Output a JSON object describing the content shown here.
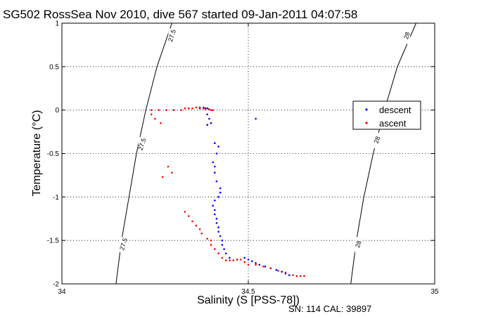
{
  "chart_data": {
    "type": "scatter",
    "title": "SG502 RossSea Nov 2010, dive 567 started 09-Jan-2011 04:07:58",
    "xlabel": "Salinity (S [PSS-78])",
    "ylabel": "Temperature (°C)",
    "xlim": [
      34,
      35
    ],
    "ylim": [
      -2,
      1
    ],
    "xticks": [
      34,
      34.5,
      35
    ],
    "xtick_labels": [
      "34",
      "34.5",
      "35"
    ],
    "yticks": [
      -2,
      -1.5,
      -1,
      -0.5,
      0,
      0.5,
      1
    ],
    "ytick_labels": [
      "-2",
      "-1.5",
      "-1",
      "-0.5",
      "0",
      "0.5",
      "1"
    ],
    "grid": true,
    "legend_position": "right",
    "footer": "SN: 114  CAL: 39897",
    "series": [
      {
        "name": "descent",
        "color": "#0000ff",
        "marker": "dot",
        "points": [
          [
            34.37,
            0.03
          ],
          [
            34.38,
            0.03
          ],
          [
            34.385,
            0.02
          ],
          [
            34.39,
            0.02
          ],
          [
            34.395,
            0.01
          ],
          [
            34.39,
            -0.05
          ],
          [
            34.395,
            -0.1
          ],
          [
            34.4,
            -0.15
          ],
          [
            34.39,
            -0.17
          ],
          [
            34.41,
            -0.38
          ],
          [
            34.42,
            -0.42
          ],
          [
            34.415,
            -0.5
          ],
          [
            34.405,
            -0.6
          ],
          [
            34.41,
            -0.65
          ],
          [
            34.41,
            -0.72
          ],
          [
            34.415,
            -0.82
          ],
          [
            34.425,
            -0.9
          ],
          [
            34.425,
            -0.95
          ],
          [
            34.42,
            -1.0
          ],
          [
            34.41,
            -1.04
          ],
          [
            34.405,
            -1.1
          ],
          [
            34.41,
            -1.15
          ],
          [
            34.41,
            -1.2
          ],
          [
            34.415,
            -1.25
          ],
          [
            34.415,
            -1.3
          ],
          [
            34.42,
            -1.35
          ],
          [
            34.42,
            -1.4
          ],
          [
            34.425,
            -1.45
          ],
          [
            34.43,
            -1.5
          ],
          [
            34.43,
            -1.55
          ],
          [
            34.435,
            -1.6
          ],
          [
            34.44,
            -1.65
          ],
          [
            34.45,
            -1.7
          ],
          [
            34.47,
            -1.72
          ],
          [
            34.49,
            -1.7
          ],
          [
            34.5,
            -1.72
          ],
          [
            34.51,
            -1.74
          ],
          [
            34.52,
            -1.76
          ],
          [
            34.53,
            -1.78
          ],
          [
            34.545,
            -1.8
          ],
          [
            34.56,
            -1.82
          ],
          [
            34.575,
            -1.84
          ],
          [
            34.59,
            -1.86
          ],
          [
            34.6,
            -1.88
          ],
          [
            34.61,
            -1.9
          ],
          [
            34.52,
            -0.1
          ]
        ]
      },
      {
        "name": "ascent",
        "color": "#ff0000",
        "marker": "dot",
        "points": [
          [
            34.24,
            0.0
          ],
          [
            34.26,
            0.0
          ],
          [
            34.28,
            0.0
          ],
          [
            34.3,
            0.0
          ],
          [
            34.32,
            0.0
          ],
          [
            34.33,
            0.02
          ],
          [
            34.34,
            0.02
          ],
          [
            34.35,
            0.02
          ],
          [
            34.36,
            0.03
          ],
          [
            34.37,
            0.02
          ],
          [
            34.38,
            0.02
          ],
          [
            34.385,
            0.01
          ],
          [
            34.395,
            0.01
          ],
          [
            34.4,
            0.0
          ],
          [
            34.405,
            0.0
          ],
          [
            34.24,
            -0.05
          ],
          [
            34.25,
            -0.1
          ],
          [
            34.265,
            -0.15
          ],
          [
            34.285,
            -0.65
          ],
          [
            34.295,
            -0.72
          ],
          [
            34.27,
            -0.77
          ],
          [
            34.33,
            -1.17
          ],
          [
            34.34,
            -1.22
          ],
          [
            34.35,
            -1.28
          ],
          [
            34.36,
            -1.33
          ],
          [
            34.37,
            -1.37
          ],
          [
            34.375,
            -1.42
          ],
          [
            34.39,
            -1.48
          ],
          [
            34.4,
            -1.5
          ],
          [
            34.4,
            -1.55
          ],
          [
            34.41,
            -1.6
          ],
          [
            34.42,
            -1.65
          ],
          [
            34.43,
            -1.7
          ],
          [
            34.44,
            -1.73
          ],
          [
            34.45,
            -1.73
          ],
          [
            34.46,
            -1.73
          ],
          [
            34.47,
            -1.72
          ],
          [
            34.48,
            -1.72
          ],
          [
            34.49,
            -1.75
          ],
          [
            34.5,
            -1.78
          ],
          [
            34.52,
            -1.78
          ],
          [
            34.54,
            -1.8
          ],
          [
            34.56,
            -1.82
          ],
          [
            34.58,
            -1.85
          ],
          [
            34.6,
            -1.87
          ],
          [
            34.62,
            -1.9
          ],
          [
            34.63,
            -1.91
          ],
          [
            34.64,
            -1.91
          ],
          [
            34.65,
            -1.91
          ]
        ]
      }
    ],
    "contours": [
      {
        "label": "27.5",
        "points": [
          [
            34.145,
            -2.0
          ],
          [
            34.16,
            -1.5
          ],
          [
            34.18,
            -1.0
          ],
          [
            34.2,
            -0.5
          ],
          [
            34.225,
            0.0
          ],
          [
            34.255,
            0.5
          ],
          [
            34.295,
            1.0
          ]
        ],
        "label_at": [
          [
            34.165,
            -1.55
          ],
          [
            34.215,
            -0.4
          ],
          [
            34.295,
            0.85
          ]
        ]
      },
      {
        "label": "28",
        "points": [
          [
            34.775,
            -2.0
          ],
          [
            34.79,
            -1.5
          ],
          [
            34.81,
            -1.0
          ],
          [
            34.835,
            -0.5
          ],
          [
            34.865,
            0.0
          ],
          [
            34.9,
            0.5
          ],
          [
            34.95,
            1.0
          ]
        ],
        "label_at": [
          [
            34.795,
            -1.55
          ],
          [
            34.845,
            -0.35
          ],
          [
            34.925,
            0.85
          ]
        ]
      }
    ]
  }
}
